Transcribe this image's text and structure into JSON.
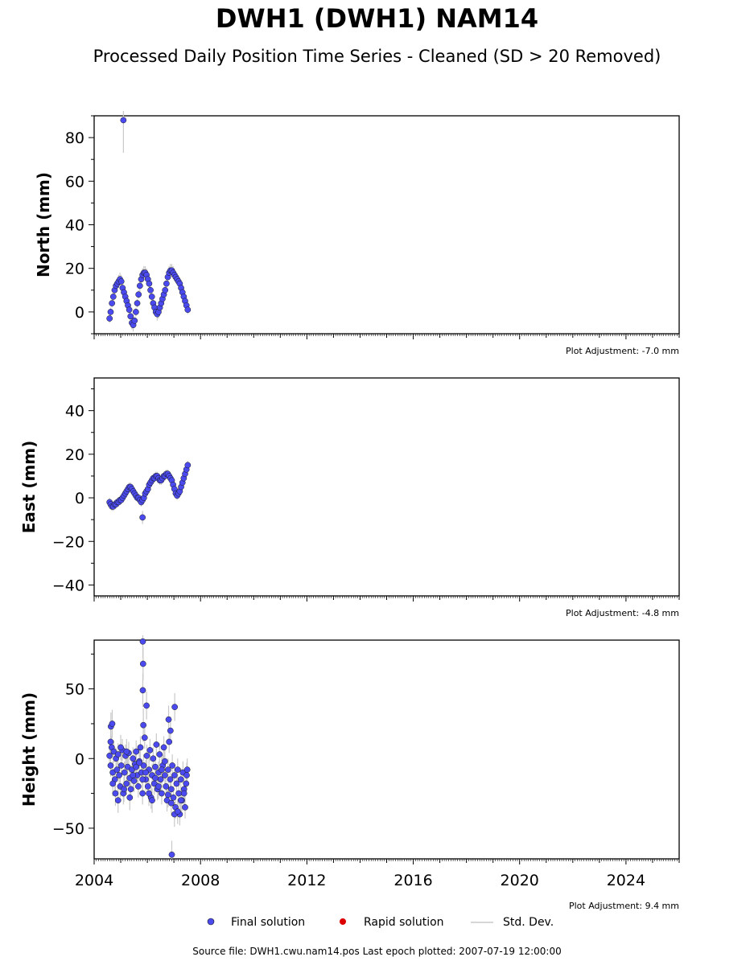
{
  "title": "DWH1 (DWH1) NAM14",
  "subtitle": "Processed Daily Position Time Series - Cleaned (SD > 20 Removed)",
  "footer": "Source file: DWH1.cwu.nam14.pos  Last epoch plotted: 2007-07-19 12:00:00",
  "legend": {
    "final": "Final solution",
    "rapid": "Rapid solution",
    "std": "Std. Dev."
  },
  "colors": {
    "final": "#4a4aee",
    "rapid": "#dd0000",
    "std": "#c8c8c8",
    "edge": "#1a1a1a"
  },
  "chart_data": [
    {
      "type": "scatter",
      "panel": "north",
      "ylabel": "North (mm)",
      "adjustment": "Plot Adjustment: -7.0 mm",
      "xlim": [
        2004.0,
        2026.0
      ],
      "ylim": [
        -10,
        90
      ],
      "yticks": [
        0,
        20,
        40,
        60,
        80
      ],
      "xticks": [
        2004,
        2008,
        2012,
        2016,
        2020,
        2024
      ],
      "x": [
        2004.58,
        2004.62,
        2004.67,
        2004.72,
        2004.77,
        2004.82,
        2004.87,
        2004.92,
        2004.97,
        2005.02,
        2005.07,
        2005.12,
        2005.17,
        2005.22,
        2005.27,
        2005.32,
        2005.37,
        2005.42,
        2005.47,
        2005.52,
        2005.57,
        2005.62,
        2005.67,
        2005.72,
        2005.77,
        2005.82,
        2005.87,
        2005.92,
        2005.97,
        2006.02,
        2006.07,
        2006.12,
        2006.17,
        2006.22,
        2006.27,
        2006.32,
        2006.37,
        2006.42,
        2006.47,
        2006.52,
        2006.57,
        2006.62,
        2006.67,
        2006.72,
        2006.77,
        2006.82,
        2006.87,
        2006.92,
        2006.97,
        2007.02,
        2007.07,
        2007.12,
        2007.17,
        2007.22,
        2007.27,
        2007.32,
        2007.37,
        2007.42,
        2007.47,
        2007.52,
        2005.1
      ],
      "y": [
        -3,
        0,
        4,
        7,
        10,
        12,
        13,
        14,
        15,
        14,
        11,
        9,
        7,
        5,
        3,
        1,
        -2,
        -5,
        -6,
        -4,
        0,
        4,
        8,
        12,
        15,
        17,
        18,
        18,
        17,
        15,
        13,
        10,
        7,
        4,
        2,
        0,
        -1,
        0,
        2,
        4,
        6,
        8,
        10,
        13,
        16,
        18,
        19,
        19,
        18,
        17,
        16,
        15,
        14,
        13,
        11,
        9,
        7,
        5,
        3,
        1,
        88
      ],
      "err": [
        2,
        2,
        2,
        2,
        2,
        2,
        2,
        3,
        3,
        3,
        2,
        2,
        2,
        2,
        2,
        2,
        2,
        3,
        3,
        2,
        2,
        2,
        2,
        3,
        3,
        3,
        3,
        3,
        3,
        3,
        2,
        2,
        2,
        2,
        2,
        2,
        3,
        3,
        3,
        3,
        2,
        2,
        2,
        2,
        2,
        3,
        3,
        3,
        3,
        3,
        2,
        2,
        2,
        2,
        2,
        2,
        2,
        2,
        2,
        2,
        15
      ]
    },
    {
      "type": "scatter",
      "panel": "east",
      "ylabel": "East (mm)",
      "adjustment": "Plot Adjustment: -4.8 mm",
      "xlim": [
        2004.0,
        2026.0
      ],
      "ylim": [
        -45,
        55
      ],
      "yticks": [
        -40,
        -20,
        0,
        20,
        40
      ],
      "xticks": [
        2004,
        2008,
        2012,
        2016,
        2020,
        2024
      ],
      "x": [
        2004.58,
        2004.62,
        2004.67,
        2004.72,
        2004.77,
        2004.82,
        2004.87,
        2004.92,
        2004.97,
        2005.02,
        2005.07,
        2005.12,
        2005.17,
        2005.22,
        2005.27,
        2005.32,
        2005.37,
        2005.42,
        2005.47,
        2005.52,
        2005.57,
        2005.62,
        2005.67,
        2005.72,
        2005.77,
        2005.82,
        2005.87,
        2005.92,
        2005.97,
        2006.02,
        2006.07,
        2006.12,
        2006.17,
        2006.22,
        2006.27,
        2006.32,
        2006.37,
        2006.42,
        2006.47,
        2006.52,
        2006.57,
        2006.62,
        2006.67,
        2006.72,
        2006.77,
        2006.82,
        2006.87,
        2006.92,
        2006.97,
        2007.02,
        2007.07,
        2007.12,
        2007.17,
        2007.22,
        2007.27,
        2007.32,
        2007.37,
        2007.42,
        2007.47,
        2007.52,
        2005.82
      ],
      "y": [
        -2,
        -3,
        -4,
        -4,
        -3,
        -3,
        -2,
        -2,
        -1,
        -1,
        0,
        1,
        2,
        3,
        4,
        5,
        5,
        4,
        3,
        2,
        1,
        0,
        0,
        -1,
        -2,
        -1,
        0,
        2,
        3,
        4,
        6,
        7,
        8,
        9,
        9,
        10,
        10,
        9,
        8,
        8,
        9,
        10,
        10,
        11,
        11,
        10,
        9,
        8,
        6,
        4,
        2,
        1,
        2,
        3,
        5,
        7,
        9,
        11,
        13,
        15,
        -9
      ],
      "err": [
        2,
        2,
        2,
        2,
        2,
        2,
        2,
        2,
        2,
        2,
        2,
        2,
        2,
        2,
        2,
        2,
        2,
        2,
        2,
        2,
        2,
        2,
        2,
        2,
        2,
        2,
        2,
        2,
        2,
        2,
        2,
        2,
        2,
        2,
        2,
        2,
        2,
        2,
        2,
        2,
        2,
        2,
        2,
        2,
        2,
        2,
        2,
        2,
        2,
        2,
        2,
        2,
        2,
        2,
        2,
        2,
        2,
        2,
        2,
        2,
        3
      ]
    },
    {
      "type": "scatter",
      "panel": "height",
      "ylabel": "Height (mm)",
      "adjustment": "Plot Adjustment: 9.4 mm",
      "xlim": [
        2004.0,
        2026.0
      ],
      "ylim": [
        -72,
        85
      ],
      "yticks": [
        -50,
        0,
        50
      ],
      "xticks": [
        2004,
        2008,
        2012,
        2016,
        2020,
        2024
      ],
      "x": [
        2004.58,
        2004.62,
        2004.66,
        2004.7,
        2004.74,
        2004.78,
        2004.82,
        2004.86,
        2004.9,
        2004.94,
        2004.98,
        2005.02,
        2005.06,
        2005.1,
        2005.14,
        2005.18,
        2005.22,
        2005.26,
        2005.3,
        2005.34,
        2005.38,
        2005.42,
        2005.46,
        2005.5,
        2005.54,
        2005.58,
        2005.62,
        2005.66,
        2005.7,
        2005.74,
        2005.78,
        2005.82,
        2005.86,
        2005.9,
        2005.94,
        2005.98,
        2006.02,
        2006.06,
        2006.1,
        2006.14,
        2006.18,
        2006.22,
        2006.26,
        2006.3,
        2006.34,
        2006.38,
        2006.42,
        2006.46,
        2006.5,
        2006.54,
        2006.58,
        2006.62,
        2006.66,
        2006.7,
        2006.74,
        2006.78,
        2006.82,
        2006.86,
        2006.9,
        2006.94,
        2006.98,
        2007.02,
        2007.06,
        2007.1,
        2007.14,
        2007.18,
        2007.22,
        2007.26,
        2007.3,
        2007.34,
        2007.38,
        2007.42,
        2007.46,
        2007.5,
        2004.62,
        2004.7,
        2004.8,
        2004.9,
        2005.0,
        2005.12,
        2005.22,
        2005.34,
        2005.46,
        2005.58,
        2005.7,
        2005.82,
        2005.94,
        2006.06,
        2006.18,
        2006.3,
        2006.42,
        2006.54,
        2006.66,
        2006.78,
        2006.9,
        2007.02,
        2007.14,
        2007.26,
        2007.38,
        2007.48,
        2005.83,
        2005.84,
        2005.83,
        2005.85,
        2005.97,
        2006.8,
        2006.87,
        2007.03,
        2004.63,
        2004.68,
        2006.92
      ],
      "y": [
        2,
        -5,
        8,
        -10,
        5,
        -15,
        0,
        -8,
        3,
        -12,
        -20,
        -5,
        6,
        -25,
        -10,
        2,
        -18,
        -6,
        4,
        -14,
        -22,
        -8,
        0,
        -16,
        -4,
        5,
        -12,
        -20,
        -2,
        8,
        -10,
        -25,
        -5,
        15,
        -15,
        2,
        -20,
        -8,
        6,
        -28,
        -12,
        0,
        -18,
        -6,
        10,
        -22,
        -10,
        3,
        -15,
        -25,
        -5,
        8,
        -12,
        -20,
        -30,
        -8,
        12,
        -15,
        -22,
        -5,
        -28,
        -12,
        -35,
        -18,
        -8,
        -25,
        -40,
        -15,
        -30,
        -10,
        -22,
        -35,
        -18,
        -8,
        12,
        -18,
        -25,
        -30,
        8,
        -22,
        5,
        -28,
        -12,
        -6,
        -3,
        -15,
        -10,
        -25,
        -30,
        -14,
        -20,
        -8,
        -2,
        -26,
        -32,
        -40,
        -38,
        -30,
        -25,
        -12,
        84,
        68,
        49,
        24,
        38,
        28,
        20,
        37,
        23,
        25,
        -69
      ],
      "err": [
        8,
        8,
        8,
        8,
        8,
        8,
        8,
        8,
        8,
        8,
        8,
        8,
        8,
        8,
        8,
        8,
        8,
        8,
        8,
        8,
        8,
        8,
        8,
        8,
        8,
        8,
        8,
        8,
        8,
        8,
        8,
        8,
        8,
        8,
        8,
        8,
        8,
        8,
        8,
        8,
        8,
        8,
        8,
        8,
        8,
        8,
        8,
        8,
        8,
        8,
        8,
        8,
        8,
        8,
        8,
        8,
        8,
        8,
        8,
        8,
        8,
        8,
        8,
        8,
        8,
        8,
        8,
        8,
        8,
        8,
        8,
        8,
        8,
        8,
        9,
        9,
        9,
        9,
        9,
        9,
        9,
        9,
        9,
        9,
        9,
        9,
        9,
        9,
        9,
        9,
        9,
        9,
        9,
        9,
        9,
        9,
        9,
        9,
        9,
        9,
        12,
        12,
        12,
        12,
        10,
        10,
        10,
        10,
        10,
        10,
        10
      ]
    }
  ]
}
